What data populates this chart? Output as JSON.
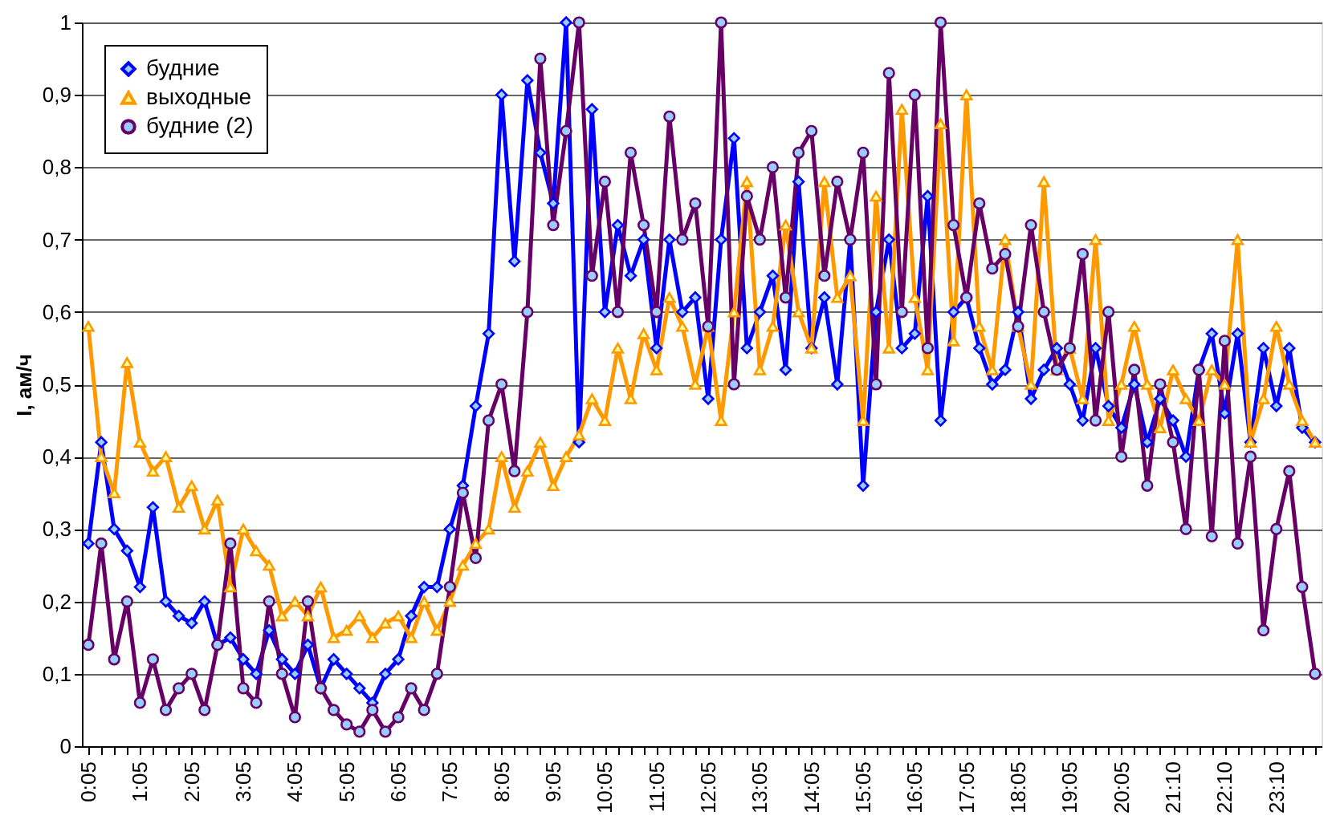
{
  "chart_data": {
    "type": "line",
    "ylabel": "I, ам/ч",
    "categories": [
      "0:05",
      null,
      null,
      null,
      "1:05",
      null,
      null,
      null,
      "2:05",
      null,
      null,
      null,
      "3:05",
      null,
      null,
      null,
      "4:05",
      null,
      null,
      null,
      "5:05",
      null,
      null,
      null,
      "6:05",
      null,
      null,
      null,
      "7:05",
      null,
      null,
      null,
      "8:05",
      null,
      null,
      null,
      "9:05",
      null,
      null,
      null,
      "10:05",
      null,
      null,
      null,
      "11:05",
      null,
      null,
      null,
      "12:05",
      null,
      null,
      null,
      "13:05",
      null,
      null,
      null,
      "14:05",
      null,
      null,
      null,
      "15:05",
      null,
      null,
      null,
      "16:05",
      null,
      null,
      null,
      "17:05",
      null,
      null,
      null,
      "18:05",
      null,
      null,
      null,
      "19:05",
      null,
      null,
      null,
      "20:05",
      null,
      null,
      null,
      "21:10",
      null,
      null,
      null,
      "22:10",
      null,
      null,
      null,
      "23:10",
      null,
      null,
      null
    ],
    "series": [
      {
        "name": "будние",
        "color": "#0000ff",
        "marker": "diamond",
        "values": [
          0.28,
          0.42,
          0.3,
          0.27,
          0.22,
          0.33,
          0.2,
          0.18,
          0.17,
          0.2,
          0.14,
          0.15,
          0.12,
          0.1,
          0.16,
          0.12,
          0.1,
          0.14,
          0.08,
          0.12,
          0.1,
          0.08,
          0.06,
          0.1,
          0.12,
          0.18,
          0.22,
          0.22,
          0.3,
          0.36,
          0.47,
          0.57,
          0.9,
          0.67,
          0.92,
          0.82,
          0.75,
          1.0,
          0.42,
          0.88,
          0.6,
          0.72,
          0.65,
          0.7,
          0.55,
          0.7,
          0.6,
          0.62,
          0.48,
          0.7,
          0.84,
          0.55,
          0.6,
          0.65,
          0.52,
          0.78,
          0.55,
          0.62,
          0.5,
          0.7,
          0.36,
          0.6,
          0.7,
          0.55,
          0.57,
          0.76,
          0.45,
          0.6,
          0.62,
          0.55,
          0.5,
          0.52,
          0.6,
          0.48,
          0.52,
          0.55,
          0.5,
          0.45,
          0.55,
          0.47,
          0.44,
          0.5,
          0.42,
          0.48,
          0.45,
          0.4,
          0.52,
          0.57,
          0.46,
          0.57,
          0.42,
          0.55,
          0.47,
          0.55,
          0.44,
          0.42
        ]
      },
      {
        "name": "выходные",
        "color": "#ff9900",
        "marker": "triangle",
        "values": [
          0.58,
          0.4,
          0.35,
          0.53,
          0.42,
          0.38,
          0.4,
          0.33,
          0.36,
          0.3,
          0.34,
          0.22,
          0.3,
          0.27,
          0.25,
          0.18,
          0.2,
          0.18,
          0.22,
          0.15,
          0.16,
          0.18,
          0.15,
          0.17,
          0.18,
          0.15,
          0.2,
          0.16,
          0.2,
          0.25,
          0.28,
          0.3,
          0.4,
          0.33,
          0.38,
          0.42,
          0.36,
          0.4,
          0.43,
          0.48,
          0.45,
          0.55,
          0.48,
          0.57,
          0.52,
          0.62,
          0.58,
          0.5,
          0.58,
          0.45,
          0.6,
          0.78,
          0.52,
          0.58,
          0.72,
          0.6,
          0.55,
          0.78,
          0.62,
          0.65,
          0.45,
          0.76,
          0.55,
          0.88,
          0.62,
          0.52,
          0.86,
          0.56,
          0.9,
          0.58,
          0.52,
          0.7,
          0.58,
          0.5,
          0.78,
          0.52,
          0.55,
          0.48,
          0.7,
          0.45,
          0.5,
          0.58,
          0.5,
          0.44,
          0.52,
          0.48,
          0.45,
          0.52,
          0.5,
          0.7,
          0.42,
          0.48,
          0.58,
          0.5,
          0.45,
          0.42
        ]
      },
      {
        "name": "будние (2)",
        "color": "#660066",
        "marker": "circle",
        "values": [
          0.14,
          0.28,
          0.12,
          0.2,
          0.06,
          0.12,
          0.05,
          0.08,
          0.1,
          0.05,
          0.14,
          0.28,
          0.08,
          0.06,
          0.2,
          0.1,
          0.04,
          0.2,
          0.08,
          0.05,
          0.03,
          0.02,
          0.05,
          0.02,
          0.04,
          0.08,
          0.05,
          0.1,
          0.22,
          0.35,
          0.26,
          0.45,
          0.5,
          0.38,
          0.6,
          0.95,
          0.72,
          0.85,
          1.0,
          0.65,
          0.78,
          0.6,
          0.82,
          0.72,
          0.6,
          0.87,
          0.7,
          0.75,
          0.58,
          1.0,
          0.5,
          0.76,
          0.7,
          0.8,
          0.62,
          0.82,
          0.85,
          0.65,
          0.78,
          0.7,
          0.82,
          0.5,
          0.93,
          0.6,
          0.9,
          0.55,
          1.0,
          0.72,
          0.62,
          0.75,
          0.66,
          0.68,
          0.58,
          0.72,
          0.6,
          0.52,
          0.55,
          0.68,
          0.45,
          0.6,
          0.4,
          0.52,
          0.36,
          0.5,
          0.42,
          0.3,
          0.52,
          0.29,
          0.56,
          0.28,
          0.4,
          0.16,
          0.3,
          0.38,
          0.22,
          0.1
        ]
      }
    ],
    "ylim": [
      0,
      1
    ],
    "yticks": [
      0,
      {
        "value": 0.1,
        "label": "0,1"
      },
      {
        "value": 0.2,
        "label": "0,2"
      },
      {
        "value": 0.3,
        "label": "0,3"
      },
      {
        "value": 0.4,
        "label": "0,4"
      },
      {
        "value": 0.5,
        "label": "0,5"
      },
      {
        "value": 0.6,
        "label": "0,6"
      },
      {
        "value": 0.7,
        "label": "0,7"
      },
      {
        "value": 0.8,
        "label": "0,8"
      },
      {
        "value": 0.9,
        "label": "0,9"
      },
      1
    ],
    "grid": "y",
    "legend": "top left",
    "line_style": "solid"
  }
}
